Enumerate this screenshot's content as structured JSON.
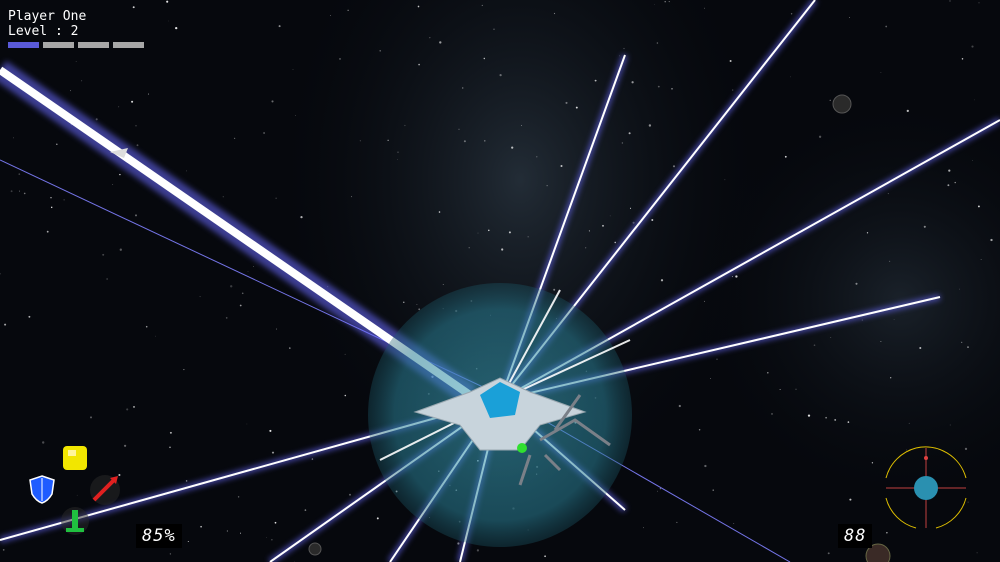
{
  "hud": {
    "player_name": "Player One",
    "level_text": "Level : 2",
    "level_progress": {
      "filled": 1,
      "total": 4
    },
    "shield_percent": "85%",
    "ammo_count": "88"
  },
  "powerups": [
    {
      "name": "yellow-cube",
      "color": "#f2e600"
    },
    {
      "name": "blue-shield",
      "color": "#1f5cff"
    },
    {
      "name": "red-missile",
      "color": "#e02020"
    },
    {
      "name": "green-repair",
      "color": "#20c040"
    }
  ],
  "colors": {
    "beam": "#7f7fff",
    "shield_bubble": "#3aa0b8",
    "ship_hull": "#c8d4dc",
    "ship_canopy": "#1aa0d8",
    "radar": "#e0c000"
  }
}
